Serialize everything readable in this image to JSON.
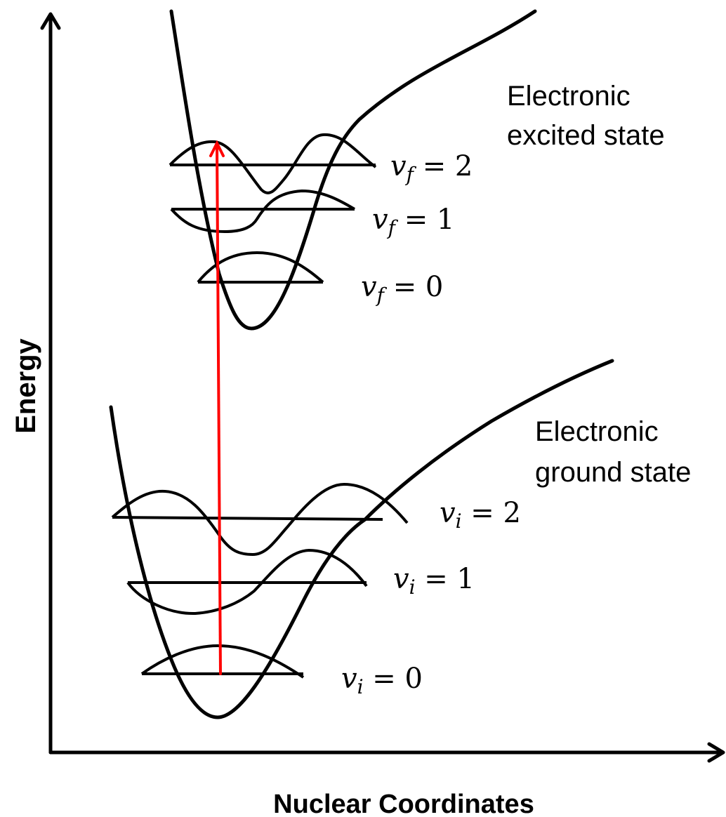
{
  "axes": {
    "y_label": "Energy",
    "x_label": "Nuclear Coordinates"
  },
  "states": {
    "excited": {
      "label_line1": "Electronic",
      "label_line2": "excited state",
      "levels": [
        {
          "var": "v",
          "sub": "f",
          "rest": " = 0"
        },
        {
          "var": "v",
          "sub": "f",
          "rest": " = 1"
        },
        {
          "var": "v",
          "sub": "f",
          "rest": " = 2"
        }
      ]
    },
    "ground": {
      "label_line1": "Electronic",
      "label_line2": "ground state",
      "levels": [
        {
          "var": "v",
          "sub": "i",
          "rest": " = 0"
        },
        {
          "var": "v",
          "sub": "i",
          "rest": " = 1"
        },
        {
          "var": "v",
          "sub": "i",
          "rest": " = 2"
        }
      ]
    }
  },
  "colors": {
    "line": "#000000",
    "transition_arrow": "#ff0000"
  }
}
